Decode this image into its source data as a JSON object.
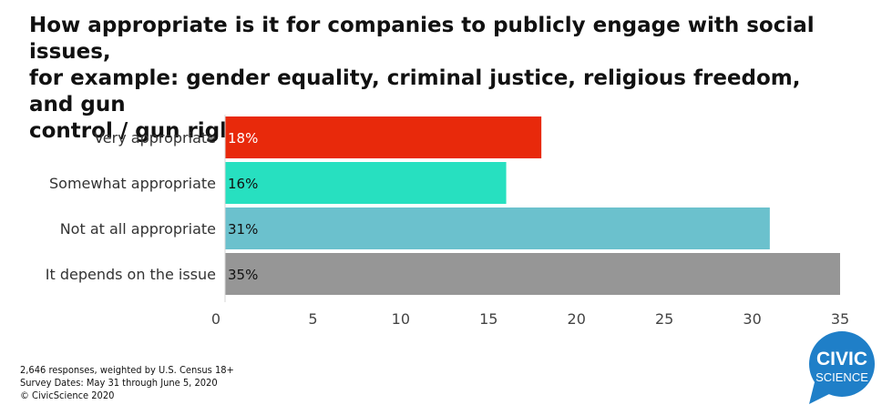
{
  "title_lines": [
    "How appropriate is it for companies to publicly engage with social issues,",
    "for example: gender equality, criminal justice, religious freedom, and gun",
    "control / gun rights?"
  ],
  "chart_data": {
    "type": "bar",
    "orientation": "horizontal",
    "categories": [
      "Very appropriate",
      "Somewhat appropriate",
      "Not at all appropriate",
      "It depends on the issue"
    ],
    "values": [
      18,
      16,
      31,
      35
    ],
    "value_labels": [
      "18%",
      "16%",
      "31%",
      "35%"
    ],
    "colors": [
      "#e8290b",
      "#27e0c0",
      "#6bc1cd",
      "#969696"
    ],
    "label_colors": [
      "#ffffff",
      "#111111",
      "#111111",
      "#111111"
    ],
    "xticks": [
      "0",
      "5",
      "10",
      "15",
      "20",
      "25",
      "30",
      "35"
    ],
    "tick_values": [
      0,
      5,
      10,
      15,
      20,
      25,
      30,
      35
    ],
    "xlim": [
      0,
      35
    ],
    "grid": false
  },
  "footnote": {
    "responses": "2,646 responses, weighted by U.S. Census 18+",
    "dates": "Survey Dates: May 31 through June 5, 2020",
    "copyright": "© CivicScience 2020"
  },
  "logo": {
    "line1": "CIVIC",
    "line2": "SCIENCE",
    "color": "#1f7fc8"
  }
}
